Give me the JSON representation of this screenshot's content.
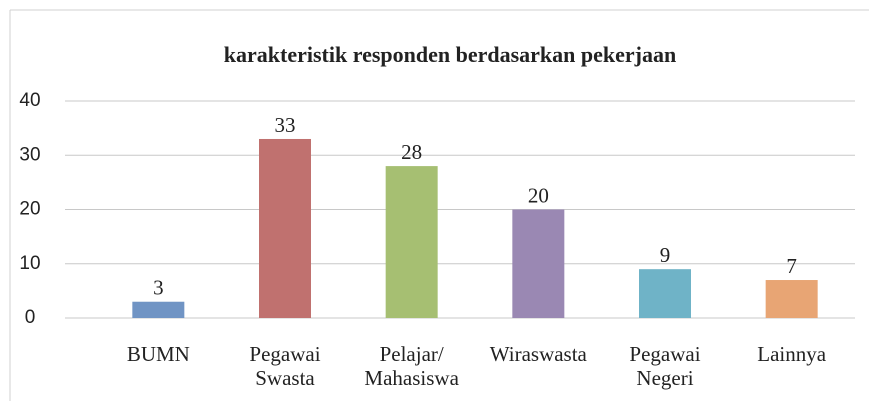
{
  "chart_data": {
    "type": "bar",
    "title": "karakteristik responden berdasarkan pekerjaan",
    "categories": [
      "BUMN",
      "Pegawai\nSwasta",
      "Pelajar/\nMahasiswa",
      "Wiraswasta",
      "Pegawai\nNegeri",
      "Lainnya"
    ],
    "values": [
      3,
      33,
      28,
      20,
      9,
      7
    ],
    "colors": [
      "#7094c4",
      "#c0716f",
      "#a6bf72",
      "#9a88b3",
      "#6fb3c7",
      "#e8a574"
    ],
    "ylim": [
      0,
      40
    ],
    "yticks": [
      0,
      10,
      20,
      30,
      40
    ],
    "grid": true
  }
}
